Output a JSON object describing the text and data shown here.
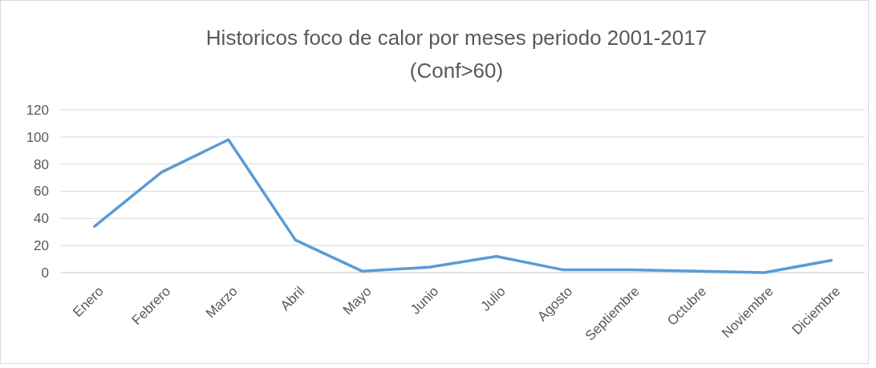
{
  "chart_data": {
    "type": "line",
    "title": "Historicos foco de calor por meses periodo 2001-2017",
    "subtitle": "(Conf>60)",
    "categories": [
      "Enero",
      "Febrero",
      "Marzo",
      "Abril",
      "Mayo",
      "Junio",
      "Julio",
      "Agosto",
      "Septiembre",
      "Octubre",
      "Noviembre",
      "Diciembre"
    ],
    "series": [
      {
        "color": "#5b9bd5",
        "values": [
          34,
          74,
          98,
          24,
          1,
          4,
          12,
          2,
          2,
          1,
          0,
          9
        ]
      }
    ],
    "ylim": [
      0,
      120
    ],
    "yticks": [
      0,
      20,
      40,
      60,
      80,
      100,
      120
    ],
    "grid": "y",
    "marker": "none",
    "line_style": "solid"
  }
}
